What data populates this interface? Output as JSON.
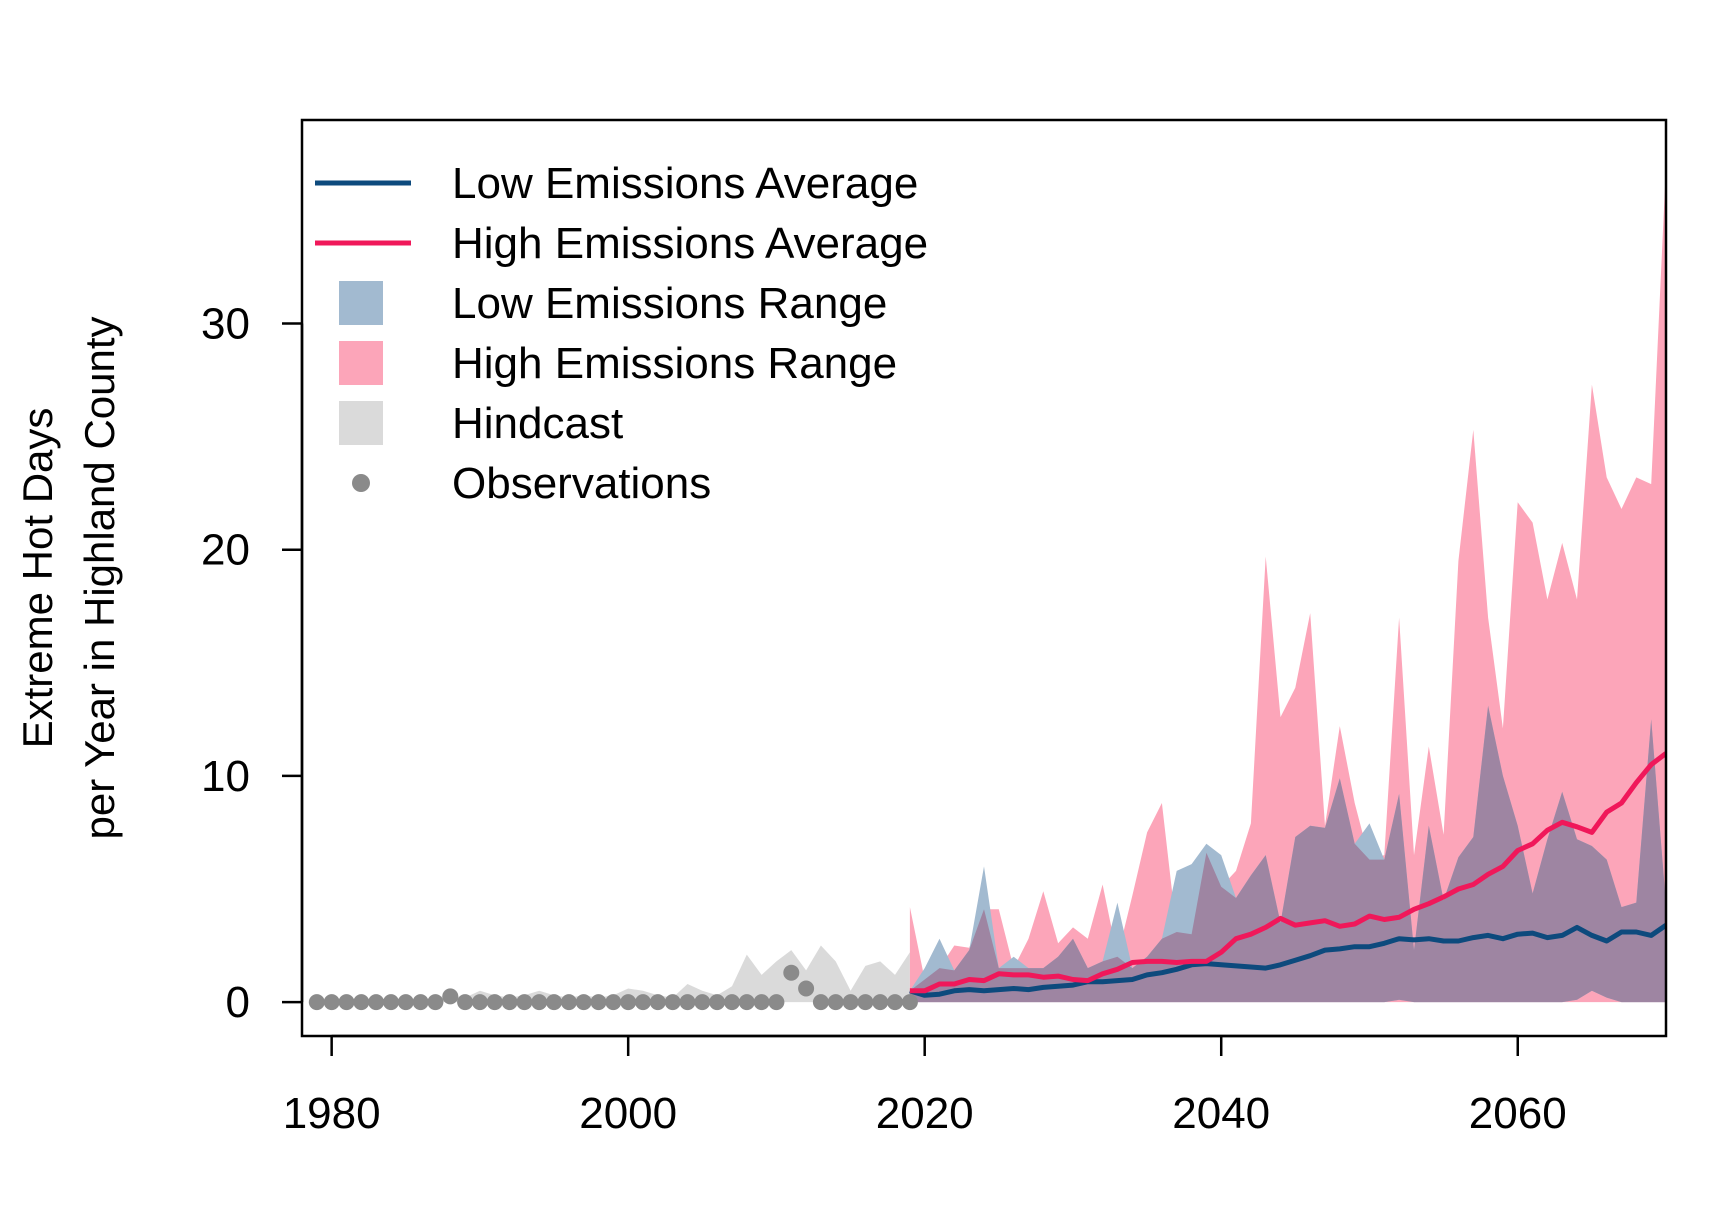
{
  "chart_data": {
    "type": "area",
    "ylabel": [
      "Extreme Hot Days",
      "per Year in Highland County"
    ],
    "xlim": [
      1978,
      2070
    ],
    "ylim": [
      -1.5,
      39
    ],
    "x_ticks": [
      1980,
      2000,
      2020,
      2040,
      2060
    ],
    "y_ticks": [
      0,
      10,
      20,
      30
    ],
    "grid": false,
    "legend_position": "top-left",
    "legend": [
      {
        "label": "Low Emissions Average",
        "symbol": "line",
        "color": "#0d4a7d"
      },
      {
        "label": "High Emissions Average",
        "symbol": "line",
        "color": "#f0185a"
      },
      {
        "label": "Low Emissions Range",
        "symbol": "box",
        "color": "#a2bad0"
      },
      {
        "label": "High Emissions Range",
        "symbol": "box",
        "color": "#fca5b9"
      },
      {
        "label": "Hindcast",
        "symbol": "box",
        "color": "#dadada"
      },
      {
        "label": "Observations",
        "symbol": "point",
        "color": "#8a8a8a"
      }
    ],
    "colors": {
      "low_avg": "#0d4a7d",
      "high_avg": "#f0185a",
      "low_range": "#a2bad0",
      "high_range": "#fca5b9",
      "overlap": "#9e85a2",
      "hindcast": "#dadada",
      "observations": "#8a8a8a",
      "axis": "#000000"
    },
    "series": [
      {
        "name": "Observations",
        "kind": "points",
        "x": [
          1979,
          1980,
          1981,
          1982,
          1983,
          1984,
          1985,
          1986,
          1987,
          1988,
          1989,
          1990,
          1991,
          1992,
          1993,
          1994,
          1995,
          1996,
          1997,
          1998,
          1999,
          2000,
          2001,
          2002,
          2003,
          2004,
          2005,
          2006,
          2007,
          2008,
          2009,
          2010,
          2011,
          2012,
          2013,
          2014,
          2015,
          2016,
          2017,
          2018,
          2019
        ],
        "values": [
          0,
          0,
          0,
          0,
          0,
          0,
          0,
          0,
          0,
          0.25,
          0,
          0,
          0,
          0,
          0,
          0,
          0,
          0,
          0,
          0,
          0,
          0,
          0,
          0,
          0,
          0,
          0,
          0,
          0,
          0,
          0,
          0,
          1.3,
          0.6,
          0,
          0,
          0,
          0,
          0,
          0,
          0
        ]
      },
      {
        "name": "Hindcast",
        "kind": "range",
        "x": [
          1979,
          1980,
          1981,
          1982,
          1983,
          1984,
          1985,
          1986,
          1987,
          1988,
          1989,
          1990,
          1991,
          1992,
          1993,
          1994,
          1995,
          1996,
          1997,
          1998,
          1999,
          2000,
          2001,
          2002,
          2003,
          2004,
          2005,
          2006,
          2007,
          2008,
          2009,
          2010,
          2011,
          2012,
          2013,
          2014,
          2015,
          2016,
          2017,
          2018,
          2019
        ],
        "low": [
          0,
          0,
          0,
          0,
          0,
          0,
          0,
          0,
          0,
          0,
          0,
          0,
          0,
          0,
          0,
          0,
          0,
          0,
          0,
          0,
          0,
          0,
          0,
          0,
          0,
          0,
          0,
          0,
          0,
          0,
          0,
          0,
          0,
          0,
          0,
          0,
          0,
          0,
          0,
          0,
          0
        ],
        "high": [
          0,
          0.1,
          0.2,
          0.1,
          0.1,
          0.2,
          0.1,
          0.1,
          0.2,
          0.3,
          0.2,
          0.5,
          0.3,
          0.2,
          0.3,
          0.5,
          0.3,
          0.2,
          0.3,
          0.2,
          0.3,
          0.6,
          0.5,
          0.3,
          0.2,
          0.8,
          0.5,
          0.3,
          0.7,
          2.1,
          1.2,
          1.8,
          2.3,
          1.4,
          2.5,
          1.8,
          0.5,
          1.6,
          1.8,
          1.2,
          2.2
        ]
      },
      {
        "name": "Low Emissions Range",
        "kind": "range",
        "x": [
          2019,
          2020,
          2021,
          2022,
          2023,
          2024,
          2025,
          2026,
          2027,
          2028,
          2029,
          2030,
          2031,
          2032,
          2033,
          2034,
          2035,
          2036,
          2037,
          2038,
          2039,
          2040,
          2041,
          2042,
          2043,
          2044,
          2045,
          2046,
          2047,
          2048,
          2049,
          2050,
          2051,
          2052,
          2053,
          2054,
          2055,
          2056,
          2057,
          2058,
          2059,
          2060,
          2061,
          2062,
          2063,
          2064,
          2065,
          2066,
          2067,
          2068,
          2069,
          2070
        ],
        "low": [
          0,
          0,
          0,
          0,
          0,
          0,
          0,
          0,
          0,
          0,
          0,
          0,
          0,
          0,
          0,
          0,
          0,
          0,
          0,
          0,
          0,
          0,
          0,
          0,
          0,
          0,
          0,
          0,
          0,
          0,
          0,
          0,
          0,
          0.1,
          0,
          0,
          0,
          0,
          0,
          0,
          0,
          0,
          0,
          0,
          0,
          0.1,
          0.5,
          0.2,
          0,
          0,
          0,
          0
        ],
        "high": [
          0.5,
          1.5,
          2.8,
          1.4,
          2.3,
          6.0,
          1.5,
          2.0,
          1.5,
          1.5,
          2.0,
          2.8,
          1.5,
          1.8,
          4.4,
          1.5,
          2.0,
          2.8,
          5.8,
          6.1,
          7.0,
          6.5,
          4.6,
          5.6,
          6.5,
          3.5,
          7.3,
          7.8,
          7.7,
          9.9,
          7.0,
          7.9,
          6.3,
          9.2,
          2.3,
          7.8,
          4.5,
          6.4,
          7.3,
          13.1,
          10.0,
          7.8,
          4.8,
          7.2,
          9.3,
          7.2,
          6.9,
          6.3,
          4.2,
          4.4,
          12.5,
          4.3
        ]
      },
      {
        "name": "High Emissions Range",
        "kind": "range",
        "x": [
          2019,
          2020,
          2021,
          2022,
          2023,
          2024,
          2025,
          2026,
          2027,
          2028,
          2029,
          2030,
          2031,
          2032,
          2033,
          2034,
          2035,
          2036,
          2037,
          2038,
          2039,
          2040,
          2041,
          2042,
          2043,
          2044,
          2045,
          2046,
          2047,
          2048,
          2049,
          2050,
          2051,
          2052,
          2053,
          2054,
          2055,
          2056,
          2057,
          2058,
          2059,
          2060,
          2061,
          2062,
          2063,
          2064,
          2065,
          2066,
          2067,
          2068,
          2069,
          2070
        ],
        "low": [
          0,
          0,
          0,
          0,
          0,
          0,
          0,
          0,
          0,
          0,
          0,
          0,
          0,
          0,
          0,
          0,
          0,
          0,
          0,
          0,
          0,
          0,
          0,
          0,
          0,
          0,
          0,
          0,
          0,
          0,
          0,
          0,
          0,
          0,
          0,
          0,
          0,
          0,
          0,
          0,
          0,
          0,
          0,
          0,
          0,
          0,
          0,
          0,
          0,
          0,
          0,
          0
        ],
        "high": [
          4.2,
          1.0,
          1.5,
          2.5,
          2.4,
          4.1,
          4.1,
          1.5,
          2.8,
          4.9,
          2.6,
          3.3,
          2.8,
          5.2,
          2.0,
          4.7,
          7.5,
          8.8,
          3.1,
          3.0,
          6.6,
          5.1,
          5.8,
          7.9,
          19.7,
          12.6,
          13.9,
          17.2,
          7.8,
          12.2,
          8.8,
          6.3,
          6.5,
          17.0,
          6.5,
          11.3,
          7.4,
          19.5,
          25.3,
          17.0,
          12.1,
          22.1,
          21.2,
          17.8,
          20.3,
          17.8,
          27.3,
          23.2,
          21.8,
          23.2,
          22.9,
          37.0
        ]
      },
      {
        "name": "Low Emissions Average",
        "kind": "line",
        "x": [
          2019,
          2020,
          2021,
          2022,
          2023,
          2024,
          2025,
          2026,
          2027,
          2028,
          2029,
          2030,
          2031,
          2032,
          2033,
          2034,
          2035,
          2036,
          2037,
          2038,
          2039,
          2040,
          2041,
          2042,
          2043,
          2044,
          2045,
          2046,
          2047,
          2048,
          2049,
          2050,
          2051,
          2052,
          2053,
          2054,
          2055,
          2056,
          2057,
          2058,
          2059,
          2060,
          2061,
          2062,
          2063,
          2064,
          2065,
          2066,
          2067,
          2068,
          2069,
          2070
        ],
        "values": [
          0.5,
          0.3,
          0.35,
          0.5,
          0.55,
          0.5,
          0.55,
          0.6,
          0.55,
          0.65,
          0.7,
          0.75,
          0.9,
          0.9,
          0.95,
          1.0,
          1.2,
          1.3,
          1.45,
          1.65,
          1.7,
          1.65,
          1.6,
          1.55,
          1.5,
          1.65,
          1.85,
          2.05,
          2.3,
          2.35,
          2.45,
          2.45,
          2.6,
          2.8,
          2.75,
          2.8,
          2.7,
          2.7,
          2.85,
          2.95,
          2.8,
          3.0,
          3.05,
          2.85,
          2.95,
          3.3,
          2.95,
          2.7,
          3.1,
          3.1,
          2.95,
          3.4
        ]
      },
      {
        "name": "High Emissions Average",
        "kind": "line",
        "x": [
          2019,
          2020,
          2021,
          2022,
          2023,
          2024,
          2025,
          2026,
          2027,
          2028,
          2029,
          2030,
          2031,
          2032,
          2033,
          2034,
          2035,
          2036,
          2037,
          2038,
          2039,
          2040,
          2041,
          2042,
          2043,
          2044,
          2045,
          2046,
          2047,
          2048,
          2049,
          2050,
          2051,
          2052,
          2053,
          2054,
          2055,
          2056,
          2057,
          2058,
          2059,
          2060,
          2061,
          2062,
          2063,
          2064,
          2065,
          2066,
          2067,
          2068,
          2069,
          2070
        ],
        "values": [
          0.5,
          0.5,
          0.8,
          0.8,
          1.0,
          0.95,
          1.25,
          1.2,
          1.2,
          1.1,
          1.15,
          1.0,
          0.95,
          1.25,
          1.45,
          1.75,
          1.8,
          1.8,
          1.75,
          1.8,
          1.8,
          2.2,
          2.8,
          3.0,
          3.3,
          3.7,
          3.4,
          3.5,
          3.6,
          3.35,
          3.45,
          3.8,
          3.65,
          3.75,
          4.1,
          4.35,
          4.65,
          5.0,
          5.2,
          5.65,
          6.0,
          6.7,
          7.0,
          7.6,
          7.95,
          7.75,
          7.5,
          8.4,
          8.8,
          9.7,
          10.5,
          11.0
        ]
      }
    ]
  }
}
